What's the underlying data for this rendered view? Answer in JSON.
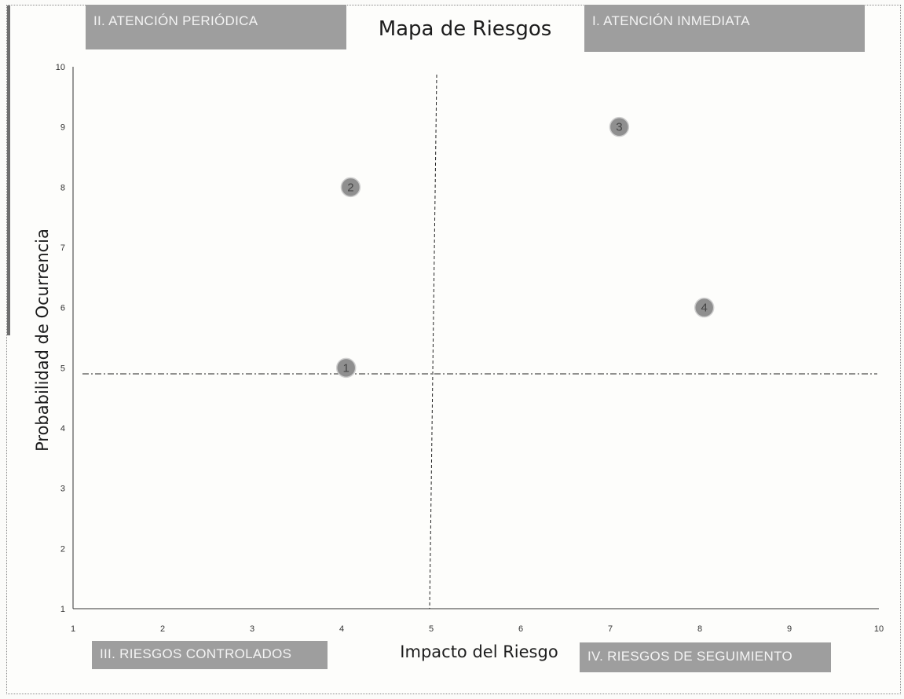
{
  "chart_data": {
    "type": "scatter",
    "title": "Mapa de Riesgos",
    "xlabel": "Impacto del Riesgo",
    "ylabel": "Probabilidad de Ocurrencia",
    "xlim": [
      1,
      10
    ],
    "ylim": [
      1,
      10
    ],
    "x_ticks": [
      "1",
      "2",
      "3",
      "4",
      "5",
      "6",
      "7",
      "8",
      "9",
      "10"
    ],
    "y_ticks": [
      "1",
      "2",
      "3",
      "4",
      "5",
      "6",
      "7",
      "8",
      "9",
      "10"
    ],
    "grid": false,
    "points": [
      {
        "label": "1",
        "x": 4.05,
        "y": 5.0
      },
      {
        "label": "2",
        "x": 4.1,
        "y": 8.0
      },
      {
        "label": "3",
        "x": 7.1,
        "y": 9.0
      },
      {
        "label": "4",
        "x": 8.05,
        "y": 6.0
      }
    ],
    "divider_x": 5,
    "divider_y": 4.9,
    "quadrants": {
      "q1": "I. ATENCIÓN INMEDIATA",
      "q2": "II. ATENCIÓN PERIÓDICA",
      "q3": "III. RIESGOS CONTROLADOS",
      "q4": "IV. RIESGOS DE SEGUIMIENTO"
    },
    "colors": {
      "marker": "#8f8f8f",
      "quadrant_box": "#9e9e9e",
      "quadrant_text": "#f4f4f4",
      "axis": "#333333"
    }
  }
}
